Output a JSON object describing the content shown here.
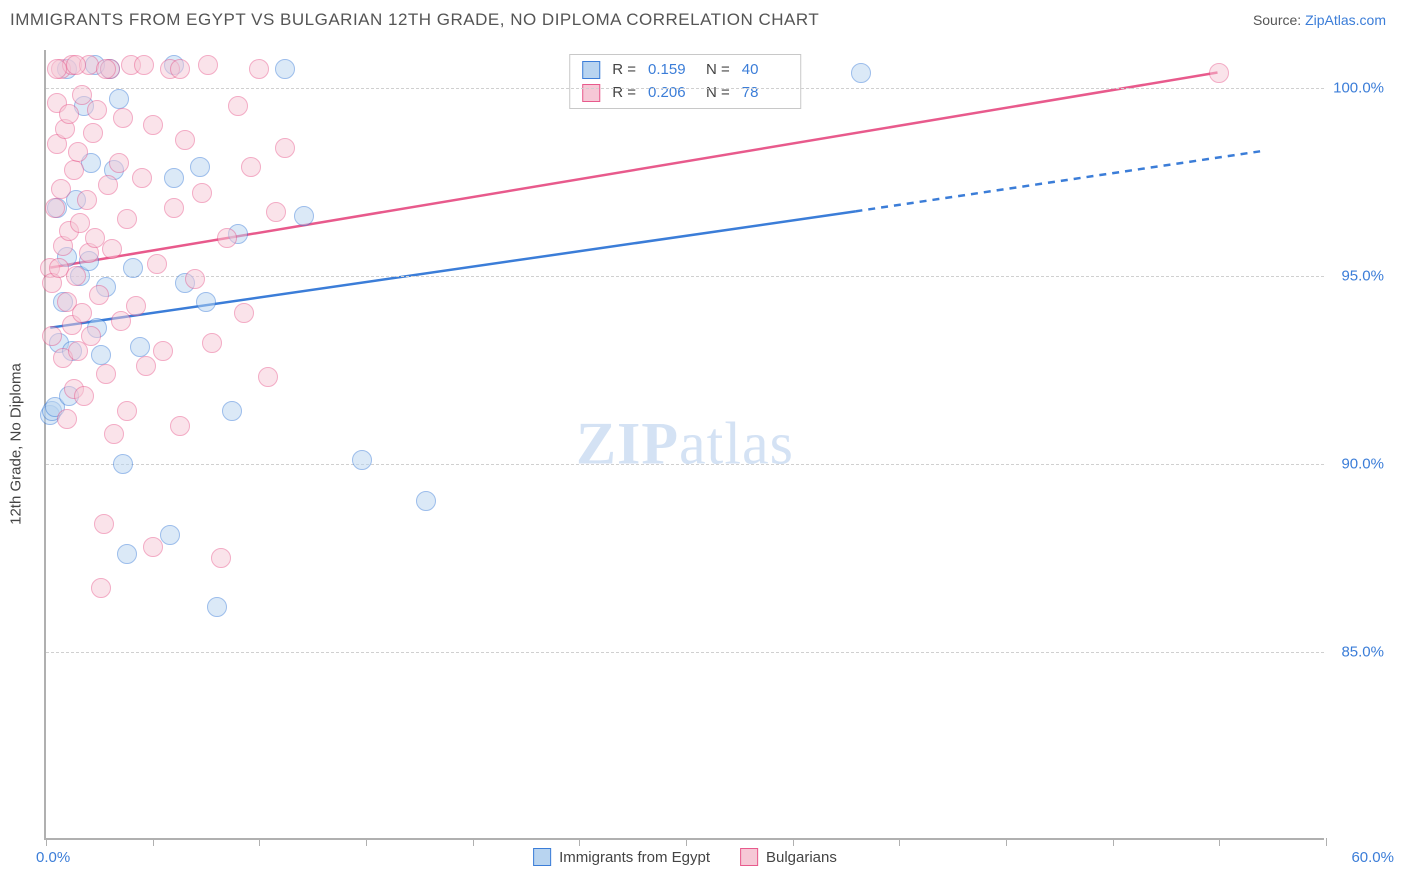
{
  "header": {
    "title": "IMMIGRANTS FROM EGYPT VS BULGARIAN 12TH GRADE, NO DIPLOMA CORRELATION CHART",
    "source_label": "Source: ",
    "source_name": "ZipAtlas.com"
  },
  "watermark": {
    "zip": "ZIP",
    "atlas": "atlas"
  },
  "chart": {
    "type": "scatter_with_trendlines",
    "ylabel": "12th Grade, No Diploma",
    "xlim": [
      0,
      60
    ],
    "ylim": [
      80,
      101
    ],
    "xticks_pct": [
      0,
      5,
      10,
      15,
      20,
      25,
      30,
      35,
      40,
      45,
      50,
      55,
      60
    ],
    "xaxis_labels": {
      "left": "0.0%",
      "right": "60.0%"
    },
    "yticks": [
      {
        "v": 85.0,
        "label": "85.0%"
      },
      {
        "v": 90.0,
        "label": "90.0%"
      },
      {
        "v": 95.0,
        "label": "95.0%"
      },
      {
        "v": 100.0,
        "label": "100.0%"
      }
    ],
    "grid_color": "#d0d0d0",
    "axis_color": "#b0b0b0",
    "background_color": "#ffffff",
    "point_radius": 10,
    "point_opacity": 0.5,
    "series": [
      {
        "key": "egypt",
        "label": "Immigrants from Egypt",
        "fill": "#b8d4f0",
        "stroke": "#3b7dd8",
        "r_value": "0.159",
        "n_value": "40",
        "trend": {
          "x1": 0.2,
          "y1": 93.6,
          "x2_solid": 38,
          "y2_solid": 96.7,
          "x2_dash": 57,
          "y2_dash": 98.3
        },
        "points": [
          {
            "x": 0.2,
            "y": 91.3
          },
          {
            "x": 0.3,
            "y": 91.4
          },
          {
            "x": 0.4,
            "y": 91.5
          },
          {
            "x": 0.6,
            "y": 93.2
          },
          {
            "x": 0.8,
            "y": 94.3
          },
          {
            "x": 1.0,
            "y": 95.5
          },
          {
            "x": 1.2,
            "y": 93.0
          },
          {
            "x": 1.4,
            "y": 97.0
          },
          {
            "x": 1.6,
            "y": 95.0
          },
          {
            "x": 1.8,
            "y": 99.5
          },
          {
            "x": 2.0,
            "y": 95.4
          },
          {
            "x": 2.1,
            "y": 98.0
          },
          {
            "x": 2.4,
            "y": 93.6
          },
          {
            "x": 2.6,
            "y": 92.9
          },
          {
            "x": 2.8,
            "y": 94.7
          },
          {
            "x": 3.0,
            "y": 100.5
          },
          {
            "x": 3.2,
            "y": 97.8
          },
          {
            "x": 3.4,
            "y": 99.7
          },
          {
            "x": 3.6,
            "y": 90.0
          },
          {
            "x": 3.8,
            "y": 87.6
          },
          {
            "x": 4.1,
            "y": 95.2
          },
          {
            "x": 4.4,
            "y": 93.1
          },
          {
            "x": 5.8,
            "y": 88.1
          },
          {
            "x": 6.0,
            "y": 100.6
          },
          {
            "x": 6.0,
            "y": 97.6
          },
          {
            "x": 6.5,
            "y": 94.8
          },
          {
            "x": 7.2,
            "y": 97.9
          },
          {
            "x": 7.5,
            "y": 94.3
          },
          {
            "x": 8.0,
            "y": 86.2
          },
          {
            "x": 8.7,
            "y": 91.4
          },
          {
            "x": 9.0,
            "y": 96.1
          },
          {
            "x": 11.2,
            "y": 100.5
          },
          {
            "x": 12.1,
            "y": 96.6
          },
          {
            "x": 14.8,
            "y": 90.1
          },
          {
            "x": 17.8,
            "y": 89.0
          },
          {
            "x": 38.2,
            "y": 100.4
          },
          {
            "x": 1.0,
            "y": 100.5
          },
          {
            "x": 2.3,
            "y": 100.6
          },
          {
            "x": 0.5,
            "y": 96.8
          },
          {
            "x": 1.1,
            "y": 91.8
          }
        ]
      },
      {
        "key": "bulgarians",
        "label": "Bulgarians",
        "fill": "#f6c8d6",
        "stroke": "#e85a8c",
        "r_value": "0.206",
        "n_value": "78",
        "trend": {
          "x1": 0.2,
          "y1": 95.2,
          "x2_solid": 55,
          "y2_solid": 100.4,
          "x2_dash": 55,
          "y2_dash": 100.4
        },
        "points": [
          {
            "x": 0.2,
            "y": 95.2
          },
          {
            "x": 0.3,
            "y": 93.4
          },
          {
            "x": 0.3,
            "y": 94.8
          },
          {
            "x": 0.4,
            "y": 96.8
          },
          {
            "x": 0.5,
            "y": 98.5
          },
          {
            "x": 0.5,
            "y": 99.6
          },
          {
            "x": 0.6,
            "y": 95.2
          },
          {
            "x": 0.7,
            "y": 97.3
          },
          {
            "x": 0.7,
            "y": 100.5
          },
          {
            "x": 0.8,
            "y": 92.8
          },
          {
            "x": 0.8,
            "y": 95.8
          },
          {
            "x": 0.9,
            "y": 98.9
          },
          {
            "x": 1.0,
            "y": 91.2
          },
          {
            "x": 1.0,
            "y": 94.3
          },
          {
            "x": 1.1,
            "y": 96.2
          },
          {
            "x": 1.1,
            "y": 99.3
          },
          {
            "x": 1.2,
            "y": 93.7
          },
          {
            "x": 1.2,
            "y": 100.6
          },
          {
            "x": 1.3,
            "y": 92.0
          },
          {
            "x": 1.3,
            "y": 97.8
          },
          {
            "x": 1.4,
            "y": 95.0
          },
          {
            "x": 1.5,
            "y": 98.3
          },
          {
            "x": 1.5,
            "y": 93.0
          },
          {
            "x": 1.6,
            "y": 96.4
          },
          {
            "x": 1.7,
            "y": 99.8
          },
          {
            "x": 1.7,
            "y": 94.0
          },
          {
            "x": 1.8,
            "y": 91.8
          },
          {
            "x": 1.9,
            "y": 97.0
          },
          {
            "x": 2.0,
            "y": 100.6
          },
          {
            "x": 2.0,
            "y": 95.6
          },
          {
            "x": 2.1,
            "y": 93.4
          },
          {
            "x": 2.2,
            "y": 98.8
          },
          {
            "x": 2.3,
            "y": 96.0
          },
          {
            "x": 2.4,
            "y": 99.4
          },
          {
            "x": 2.5,
            "y": 94.5
          },
          {
            "x": 2.6,
            "y": 86.7
          },
          {
            "x": 2.7,
            "y": 88.4
          },
          {
            "x": 2.8,
            "y": 92.4
          },
          {
            "x": 2.9,
            "y": 97.4
          },
          {
            "x": 3.0,
            "y": 100.5
          },
          {
            "x": 3.1,
            "y": 95.7
          },
          {
            "x": 3.2,
            "y": 90.8
          },
          {
            "x": 3.4,
            "y": 98.0
          },
          {
            "x": 3.5,
            "y": 93.8
          },
          {
            "x": 3.6,
            "y": 99.2
          },
          {
            "x": 3.8,
            "y": 96.5
          },
          {
            "x": 4.0,
            "y": 100.6
          },
          {
            "x": 4.2,
            "y": 94.2
          },
          {
            "x": 4.5,
            "y": 97.6
          },
          {
            "x": 4.7,
            "y": 92.6
          },
          {
            "x": 5.0,
            "y": 99.0
          },
          {
            "x": 5.2,
            "y": 95.3
          },
          {
            "x": 5.5,
            "y": 93.0
          },
          {
            "x": 5.8,
            "y": 100.5
          },
          {
            "x": 6.0,
            "y": 96.8
          },
          {
            "x": 6.3,
            "y": 91.0
          },
          {
            "x": 6.5,
            "y": 98.6
          },
          {
            "x": 7.0,
            "y": 94.9
          },
          {
            "x": 7.3,
            "y": 97.2
          },
          {
            "x": 7.6,
            "y": 100.6
          },
          {
            "x": 7.8,
            "y": 93.2
          },
          {
            "x": 8.2,
            "y": 87.5
          },
          {
            "x": 8.5,
            "y": 96.0
          },
          {
            "x": 9.0,
            "y": 99.5
          },
          {
            "x": 9.3,
            "y": 94.0
          },
          {
            "x": 9.6,
            "y": 97.9
          },
          {
            "x": 10.0,
            "y": 100.5
          },
          {
            "x": 10.4,
            "y": 92.3
          },
          {
            "x": 10.8,
            "y": 96.7
          },
          {
            "x": 11.2,
            "y": 98.4
          },
          {
            "x": 1.4,
            "y": 100.6
          },
          {
            "x": 0.5,
            "y": 100.5
          },
          {
            "x": 2.8,
            "y": 100.5
          },
          {
            "x": 4.6,
            "y": 100.6
          },
          {
            "x": 6.3,
            "y": 100.5
          },
          {
            "x": 3.8,
            "y": 91.4
          },
          {
            "x": 5.0,
            "y": 87.8
          },
          {
            "x": 55.0,
            "y": 100.4
          }
        ]
      }
    ],
    "rn_legend": {
      "r_label": "R  =",
      "n_label": "N  ="
    },
    "bottom_legend": true
  }
}
